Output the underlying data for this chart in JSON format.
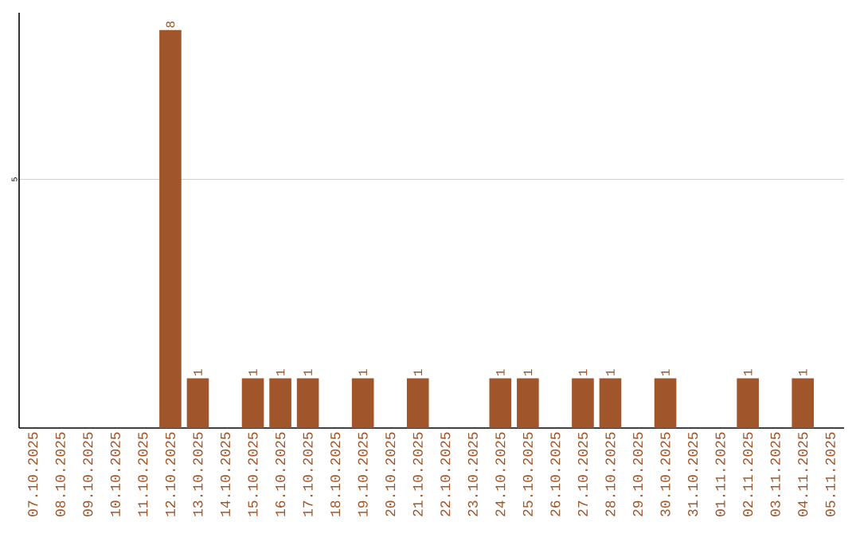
{
  "chart_data": {
    "type": "bar",
    "categories": [
      "07.10.2025",
      "08.10.2025",
      "09.10.2025",
      "10.10.2025",
      "11.10.2025",
      "12.10.2025",
      "13.10.2025",
      "14.10.2025",
      "15.10.2025",
      "16.10.2025",
      "17.10.2025",
      "18.10.2025",
      "19.10.2025",
      "20.10.2025",
      "21.10.2025",
      "22.10.2025",
      "23.10.2025",
      "24.10.2025",
      "25.10.2025",
      "26.10.2025",
      "27.10.2025",
      "28.10.2025",
      "29.10.2025",
      "30.10.2025",
      "31.10.2025",
      "01.11.2025",
      "02.11.2025",
      "03.11.2025",
      "04.11.2025",
      "05.11.2025"
    ],
    "values": [
      0,
      0,
      0,
      0,
      0,
      8,
      1,
      0,
      1,
      1,
      1,
      0,
      1,
      0,
      1,
      0,
      0,
      1,
      1,
      0,
      1,
      1,
      0,
      1,
      0,
      0,
      1,
      0,
      1,
      0
    ],
    "value_labels": [
      null,
      null,
      null,
      null,
      null,
      "8",
      "1",
      null,
      "1",
      "1",
      "1",
      null,
      "1",
      null,
      "1",
      null,
      null,
      "1",
      "1",
      null,
      "1",
      "1",
      null,
      "1",
      null,
      null,
      "1",
      null,
      "1",
      null
    ],
    "color": "#a0562a",
    "ylim": [
      0,
      8.35
    ],
    "yticks": [
      5
    ],
    "grid": "y"
  }
}
